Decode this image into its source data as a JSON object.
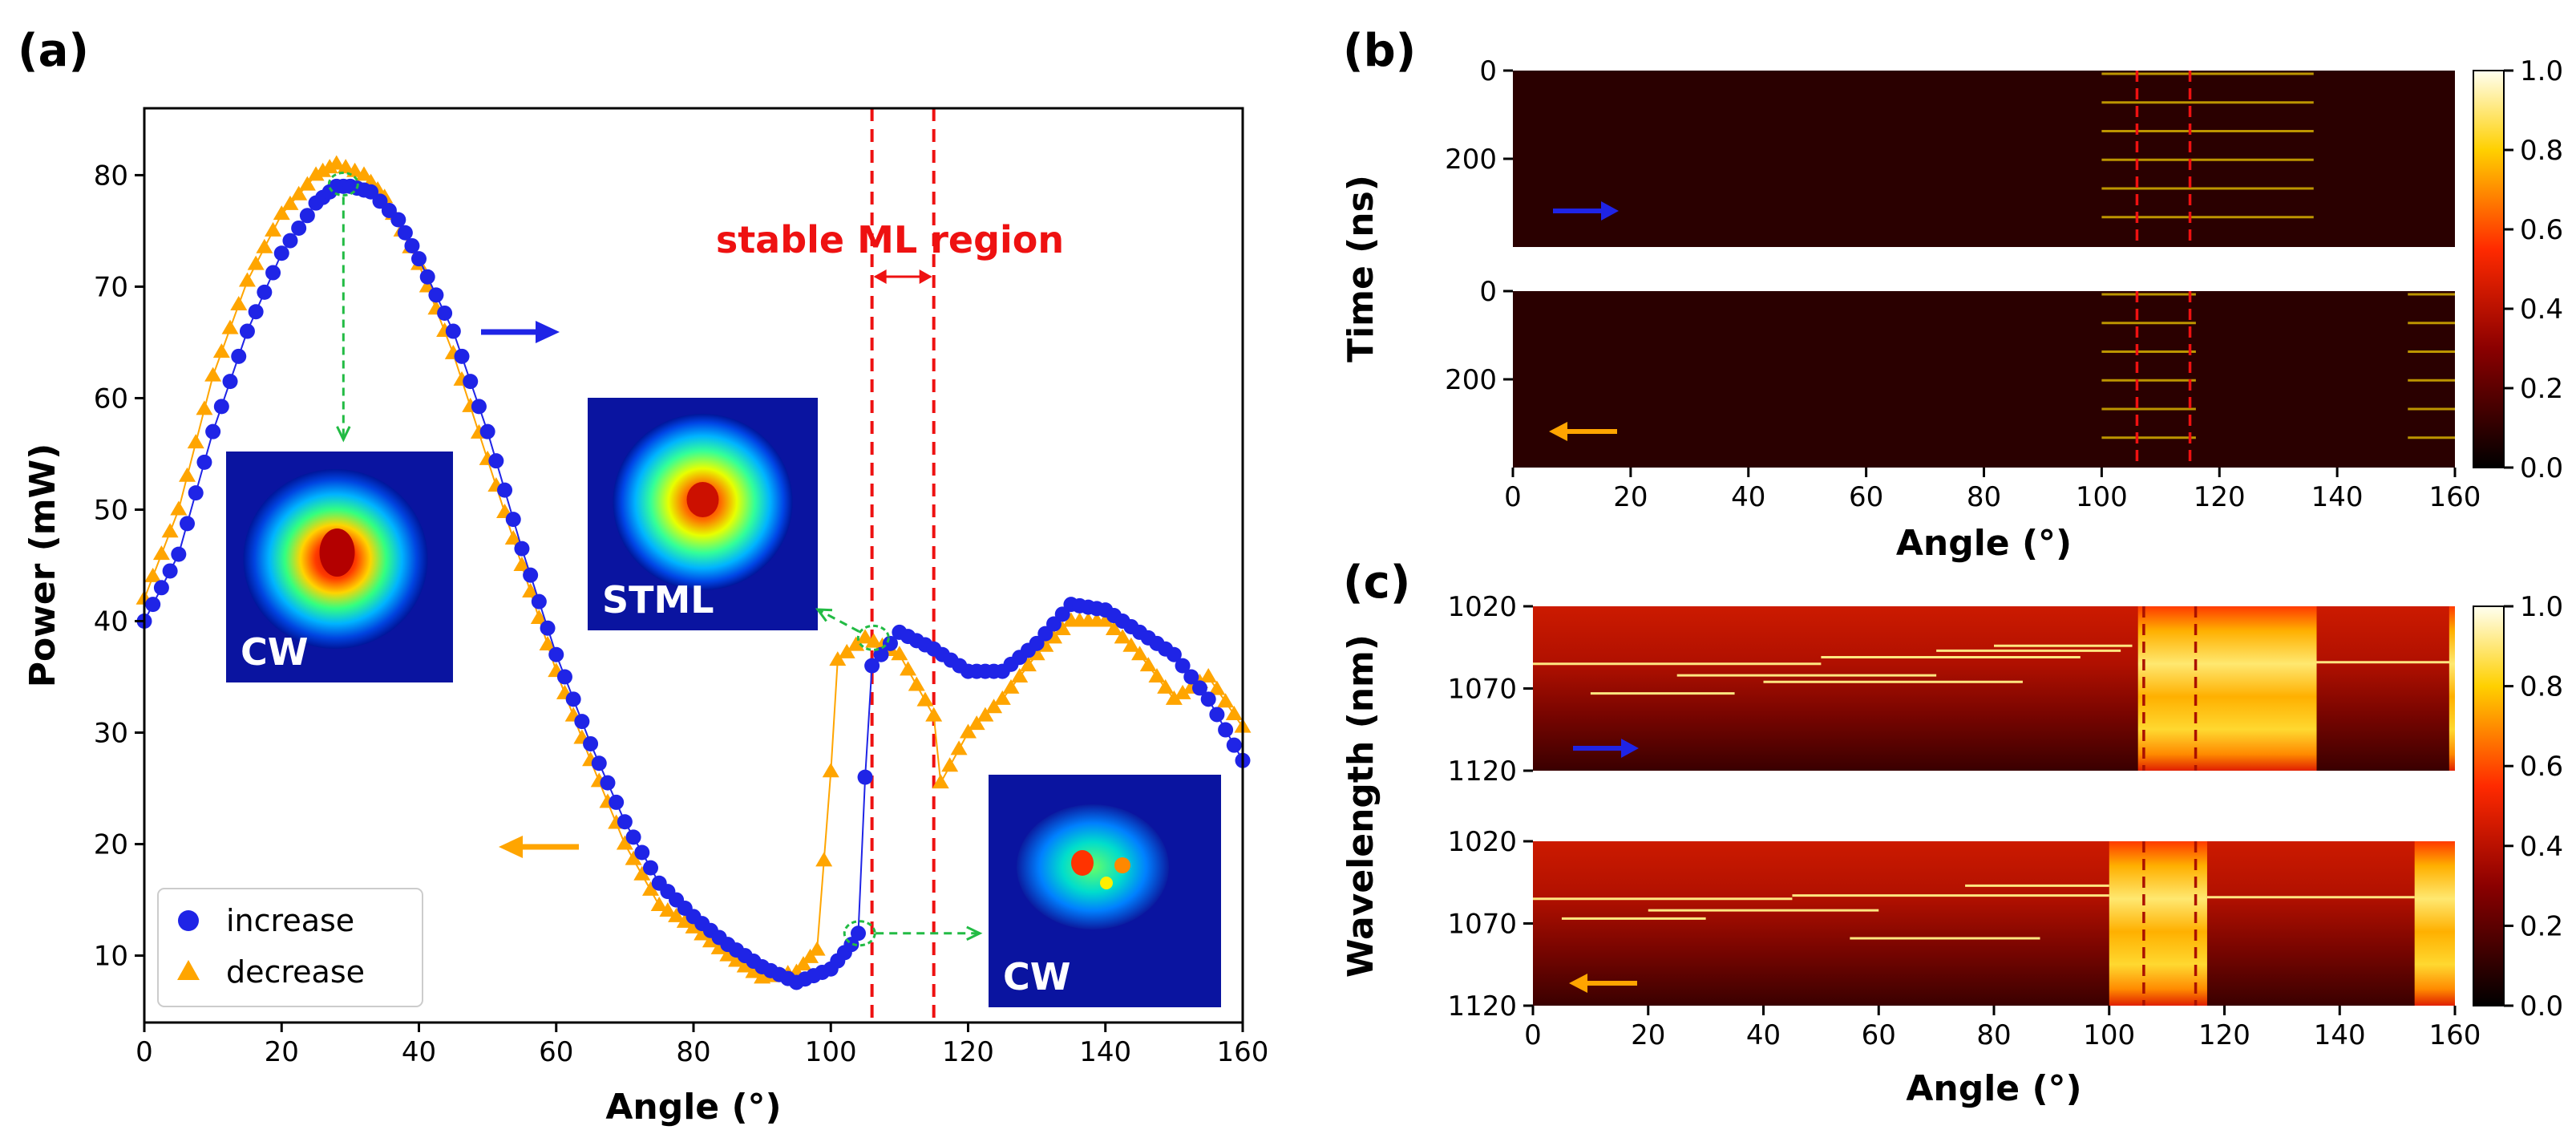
{
  "figure_labels": {
    "a": "(a)",
    "b": "(b)",
    "c": "(c)"
  },
  "colors": {
    "increase": "#1f24e6",
    "decrease": "#ffa500",
    "region_line": "#ee1111",
    "guide_arrow": "#22bb44"
  },
  "chart_data": [
    {
      "id": "a",
      "type": "scatter",
      "title": "",
      "xlabel": "Angle (°)",
      "ylabel": "Power (mW)",
      "xlim": [
        0,
        160
      ],
      "ylim": [
        4,
        86
      ],
      "xticks": [
        0,
        20,
        40,
        60,
        80,
        100,
        120,
        140,
        160
      ],
      "yticks": [
        10,
        20,
        30,
        40,
        50,
        60,
        70,
        80
      ],
      "series": [
        {
          "name": "increase",
          "marker": "circle",
          "color": "#1f24e6",
          "points": [
            [
              0,
              40
            ],
            [
              5,
              46
            ],
            [
              10,
              57
            ],
            [
              15,
              66
            ],
            [
              20,
              73
            ],
            [
              25,
              77.5
            ],
            [
              28,
              79
            ],
            [
              30,
              79
            ],
            [
              33,
              78.5
            ],
            [
              37,
              76
            ],
            [
              40,
              72.5
            ],
            [
              45,
              66
            ],
            [
              50,
              57
            ],
            [
              55,
              46.5
            ],
            [
              60,
              37
            ],
            [
              65,
              29
            ],
            [
              70,
              22
            ],
            [
              75,
              16.5
            ],
            [
              80,
              13.5
            ],
            [
              85,
              11
            ],
            [
              90,
              9
            ],
            [
              95,
              7.6
            ],
            [
              100,
              8.8
            ],
            [
              103,
              11
            ],
            [
              104,
              12
            ],
            [
              105,
              26
            ],
            [
              106,
              36
            ],
            [
              110,
              39
            ],
            [
              115,
              37.5
            ],
            [
              120,
              35.5
            ],
            [
              125,
              35.5
            ],
            [
              130,
              38
            ],
            [
              135,
              41.5
            ],
            [
              140,
              41
            ],
            [
              145,
              39
            ],
            [
              150,
              37
            ],
            [
              155,
              33
            ],
            [
              160,
              27.5
            ]
          ]
        },
        {
          "name": "decrease",
          "marker": "triangle",
          "color": "#ffa500",
          "points": [
            [
              0,
              42
            ],
            [
              5,
              50
            ],
            [
              10,
              62
            ],
            [
              15,
              70.5
            ],
            [
              20,
              76.5
            ],
            [
              25,
              80
            ],
            [
              28,
              81
            ],
            [
              32,
              80
            ],
            [
              35,
              78
            ],
            [
              40,
              72
            ],
            [
              45,
              64
            ],
            [
              50,
              54.5
            ],
            [
              55,
              45
            ],
            [
              60,
              35.5
            ],
            [
              65,
              27.5
            ],
            [
              70,
              20
            ],
            [
              75,
              14.5
            ],
            [
              80,
              12.5
            ],
            [
              85,
              10
            ],
            [
              90,
              8
            ],
            [
              95,
              8.5
            ],
            [
              98,
              10.5
            ],
            [
              100,
              26.5
            ],
            [
              101,
              36.5
            ],
            [
              105,
              38.5
            ],
            [
              110,
              37
            ],
            [
              115,
              31.5
            ],
            [
              116,
              25.5
            ],
            [
              120,
              30
            ],
            [
              125,
              33
            ],
            [
              130,
              37
            ],
            [
              135,
              40
            ],
            [
              140,
              40
            ],
            [
              145,
              37
            ],
            [
              150,
              33
            ],
            [
              155,
              35
            ],
            [
              160,
              30.5
            ]
          ]
        }
      ],
      "region_lines_x": [
        106,
        115
      ],
      "annotation": "stable ML region",
      "legend": {
        "position": "lower-left",
        "entries": [
          "increase",
          "decrease"
        ]
      },
      "insets": [
        {
          "label": "CW",
          "kind": "cw-spot"
        },
        {
          "label": "STML",
          "kind": "stml-spot"
        },
        {
          "label": "CW",
          "kind": "cw-speckle"
        }
      ]
    },
    {
      "id": "b",
      "type": "heatmap",
      "xlabel": "Angle (°)",
      "ylabel": "Time (ns)",
      "xlim": [
        0,
        160
      ],
      "xticks": [
        0,
        20,
        40,
        60,
        80,
        100,
        120,
        140,
        160
      ],
      "yticks": [
        0,
        200
      ],
      "ylim": [
        0,
        400
      ],
      "colorbar": {
        "range": [
          0,
          1
        ],
        "ticks": [
          "0.0",
          "0.2",
          "0.4",
          "0.6",
          "0.8",
          "1.0"
        ],
        "cmap": "hot"
      },
      "panels": [
        {
          "direction": "increase",
          "pulse_bands": [
            [
              100,
              136
            ]
          ],
          "pulse_times": [
            0,
            65,
            130,
            195,
            260,
            325
          ]
        },
        {
          "direction": "decrease",
          "pulse_bands": [
            [
              100,
              116
            ],
            [
              152,
              160
            ]
          ],
          "pulse_times": [
            0,
            65,
            130,
            195,
            260,
            325
          ]
        }
      ],
      "region_lines_x": [
        106,
        115
      ]
    },
    {
      "id": "c",
      "type": "heatmap",
      "xlabel": "Angle (°)",
      "ylabel": "Wavelength (nm)",
      "xlim": [
        0,
        160
      ],
      "xticks": [
        0,
        20,
        40,
        60,
        80,
        100,
        120,
        140,
        160
      ],
      "yticks": [
        1020,
        1070,
        1120
      ],
      "ylim": [
        1020,
        1120
      ],
      "colorbar": {
        "range": [
          0,
          1
        ],
        "ticks": [
          "0.0",
          "0.2",
          "0.4",
          "0.6",
          "0.8",
          "1.0"
        ],
        "cmap": "hot"
      },
      "panels": [
        {
          "direction": "increase",
          "broad_bands": [
            [
              105,
              136
            ],
            [
              159,
              160
            ]
          ],
          "cw_lines": [
            [
              0,
              50,
              1055
            ],
            [
              50,
              95,
              1051
            ],
            [
              25,
              70,
              1062
            ],
            [
              40,
              85,
              1066
            ],
            [
              10,
              35,
              1073
            ],
            [
              70,
              102,
              1047
            ],
            [
              80,
              104,
              1044
            ],
            [
              136,
              160,
              1054
            ]
          ]
        },
        {
          "direction": "decrease",
          "broad_bands": [
            [
              100,
              117
            ],
            [
              153,
              160
            ]
          ],
          "cw_lines": [
            [
              0,
              45,
              1055
            ],
            [
              45,
              100,
              1053
            ],
            [
              20,
              60,
              1062
            ],
            [
              5,
              30,
              1067
            ],
            [
              55,
              88,
              1079
            ],
            [
              75,
              100,
              1047
            ],
            [
              117,
              153,
              1054
            ]
          ]
        }
      ],
      "region_lines_x": [
        106,
        115
      ]
    }
  ]
}
